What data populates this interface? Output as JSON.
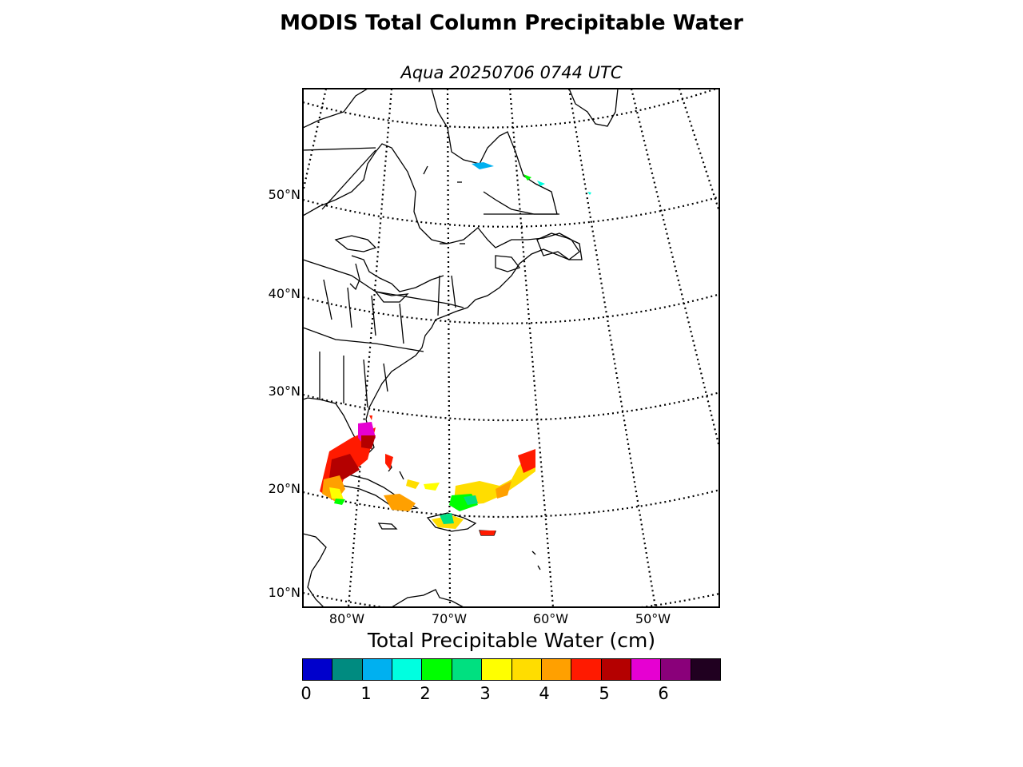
{
  "title": "MODIS Total Column Precipitable Water",
  "subtitle": "Aqua 20250706 0744 UTC",
  "map": {
    "lat_labels": [
      "50°N",
      "40°N",
      "30°N",
      "20°N",
      "10°N"
    ],
    "lon_labels": [
      "80°W",
      "70°W",
      "60°W",
      "50°W"
    ],
    "grid": "dotted",
    "land_color": "#ffffff",
    "coastline_color": "#000000"
  },
  "colorbar": {
    "title": "Total Precipitable Water (cm)",
    "tick_labels": [
      "0",
      "1",
      "2",
      "3",
      "4",
      "5",
      "6"
    ],
    "colors": [
      "#0000cc",
      "#008b80",
      "#00b0f0",
      "#00ffe0",
      "#00ff00",
      "#00e080",
      "#ffff00",
      "#ffdd00",
      "#ffa000",
      "#ff1a00",
      "#b40000",
      "#e600d2",
      "#8a007a",
      "#200020"
    ]
  }
}
